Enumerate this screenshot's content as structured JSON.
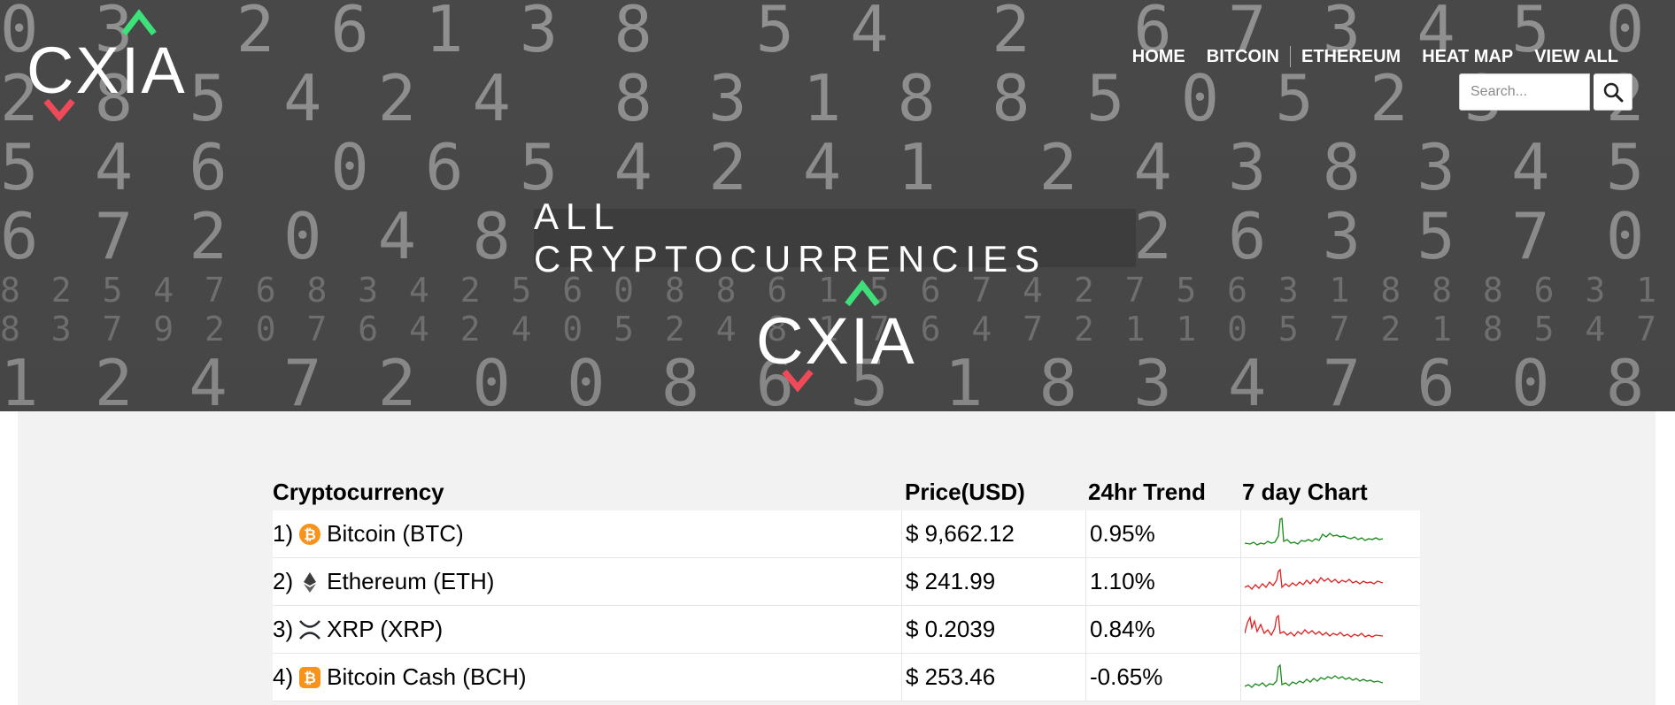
{
  "brand": {
    "logo_text": "CXIA",
    "up_color": "#3ee07a",
    "down_color": "#ef4a5a"
  },
  "nav": {
    "items": [
      "HOME",
      "BITCOIN",
      "ETHEREUM",
      "HEAT MAP",
      "VIEW ALL"
    ]
  },
  "search": {
    "placeholder": "Search...",
    "icon": "search-icon"
  },
  "hero": {
    "title": "ALL CRYPTOCURRENCIES"
  },
  "table": {
    "headers": {
      "name": "Cryptocurrency",
      "price": "Price(USD)",
      "trend": "24hr Trend",
      "chart": "7 day Chart"
    },
    "rows": [
      {
        "rank": "1)",
        "name": "Bitcoin (BTC)",
        "icon": "bitcoin-icon",
        "icon_color": "#f7931a",
        "price": "$ 9,662.12",
        "trend": "0.95%",
        "chart_color": "#1a8a1a"
      },
      {
        "rank": "2)",
        "name": "Ethereum (ETH)",
        "icon": "ethereum-icon",
        "icon_color": "#3c3c3d",
        "price": "$ 241.99",
        "trend": "1.10%",
        "chart_color": "#e02020"
      },
      {
        "rank": "3)",
        "name": "XRP (XRP)",
        "icon": "xrp-icon",
        "icon_color": "#23292f",
        "price": "$ 0.2039",
        "trend": "0.84%",
        "chart_color": "#e02020"
      },
      {
        "rank": "4)",
        "name": "Bitcoin Cash (BCH)",
        "icon": "bitcoin-cash-icon",
        "icon_color": "#f7931a",
        "price": "$ 253.46",
        "trend": "-0.65%",
        "chart_color": "#1a8a1a"
      }
    ]
  }
}
